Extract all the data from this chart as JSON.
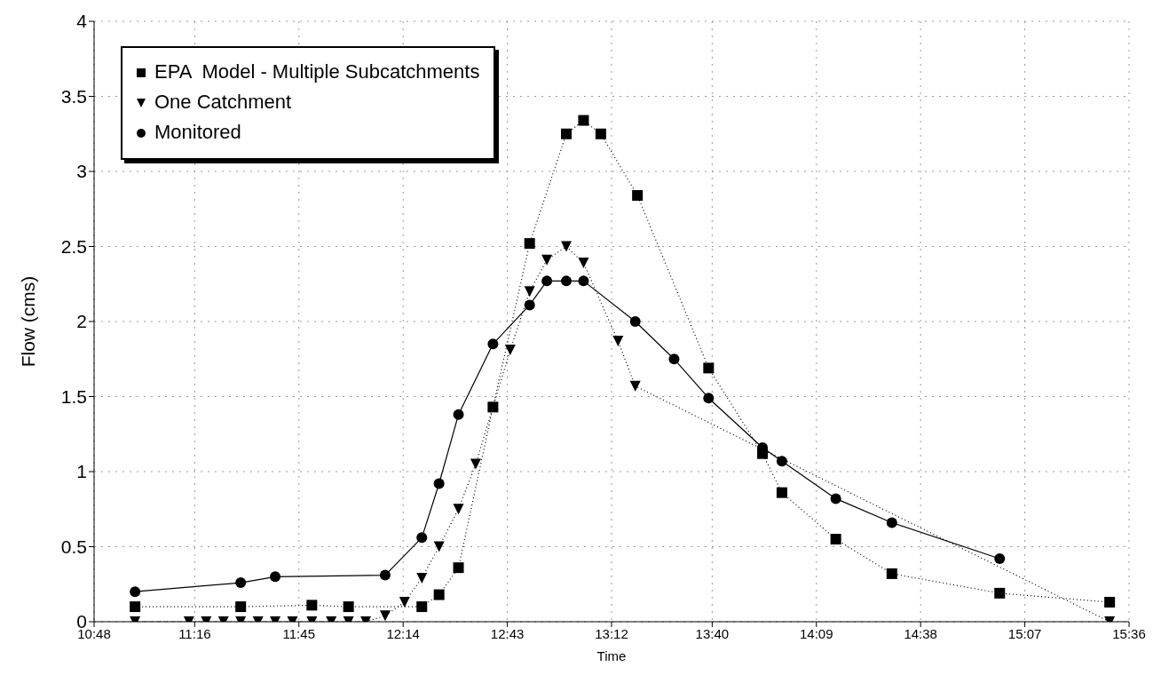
{
  "chart_data": {
    "type": "line",
    "xlabel": "Time",
    "ylabel": "Flow (cms)",
    "xlim": [
      10.8,
      15.6
    ],
    "xticks": [
      {
        "value": 10.8,
        "label": "10:48"
      },
      {
        "value": 11.2667,
        "label": "11:16"
      },
      {
        "value": 11.75,
        "label": "11:45"
      },
      {
        "value": 12.2333,
        "label": "12:14"
      },
      {
        "value": 12.7167,
        "label": "12:43"
      },
      {
        "value": 13.2,
        "label": "13:12"
      },
      {
        "value": 13.6667,
        "label": "13:40"
      },
      {
        "value": 14.15,
        "label": "14:09"
      },
      {
        "value": 14.6333,
        "label": "14:38"
      },
      {
        "value": 15.1167,
        "label": "15:07"
      },
      {
        "value": 15.6,
        "label": "15:36"
      }
    ],
    "ylim": [
      0,
      4
    ],
    "yticks": [
      0,
      0.5,
      1,
      1.5,
      2,
      2.5,
      3,
      3.5,
      4
    ],
    "grid": true,
    "legend": "top left",
    "series": [
      {
        "name": "EPA  Model - Multiple Subcatchments",
        "color": "#000000",
        "marker": "square",
        "line_style": "dotted",
        "x": [
          10.99,
          11.48,
          11.81,
          11.98,
          12.32,
          12.4,
          12.49,
          12.65,
          12.82,
          12.99,
          13.07,
          13.15,
          13.32,
          13.65,
          13.9,
          13.99,
          14.24,
          14.5,
          15.0,
          15.51
        ],
        "values": [
          0.1,
          0.1,
          0.11,
          0.1,
          0.1,
          0.18,
          0.36,
          1.43,
          2.52,
          3.25,
          3.34,
          3.25,
          2.84,
          1.69,
          1.12,
          0.86,
          0.55,
          0.32,
          0.19,
          0.13
        ]
      },
      {
        "name": "One Catchment",
        "color": "#000000",
        "marker": "triangle",
        "line_style": "dotted",
        "x": [
          10.99,
          11.24,
          11.32,
          11.4,
          11.48,
          11.56,
          11.64,
          11.72,
          11.81,
          11.9,
          11.98,
          12.06,
          12.15,
          12.24,
          12.32,
          12.4,
          12.49,
          12.57,
          12.73,
          12.82,
          12.9,
          12.99,
          13.07,
          13.23,
          13.31,
          15.51
        ],
        "values": [
          0,
          0,
          0,
          0,
          0,
          0,
          0,
          0,
          0,
          0,
          0,
          0,
          0.04,
          0.13,
          0.29,
          0.5,
          0.75,
          1.05,
          1.81,
          2.2,
          2.41,
          2.5,
          2.39,
          1.87,
          1.57,
          0
        ]
      },
      {
        "name": "Monitored",
        "color": "#000000",
        "marker": "circle",
        "line_style": "solid",
        "x": [
          10.99,
          11.48,
          11.64,
          12.15,
          12.32,
          12.4,
          12.49,
          12.65,
          12.82,
          12.9,
          12.99,
          13.07,
          13.31,
          13.49,
          13.65,
          13.9,
          13.99,
          14.24,
          14.5,
          15.0
        ],
        "values": [
          0.2,
          0.26,
          0.3,
          0.31,
          0.56,
          0.92,
          1.38,
          1.85,
          2.11,
          2.27,
          2.27,
          2.27,
          2.0,
          1.75,
          1.49,
          1.16,
          1.07,
          0.82,
          0.66,
          0.42
        ]
      }
    ]
  }
}
